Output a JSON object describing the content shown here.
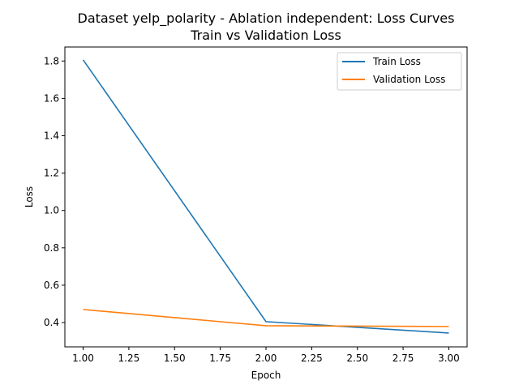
{
  "chart_data": {
    "type": "line",
    "title": "Dataset yelp_polarity - Ablation independent: Loss Curves",
    "subtitle": "Train vs Validation Loss",
    "xlabel": "Epoch",
    "ylabel": "Loss",
    "xlim": [
      0.9,
      3.1
    ],
    "ylim": [
      0.27,
      1.875
    ],
    "xticks": [
      1.0,
      1.25,
      1.5,
      1.75,
      2.0,
      2.25,
      2.5,
      2.75,
      3.0
    ],
    "xtick_labels": [
      "1.00",
      "1.25",
      "1.50",
      "1.75",
      "2.00",
      "2.25",
      "2.50",
      "2.75",
      "3.00"
    ],
    "yticks": [
      0.4,
      0.6,
      0.8,
      1.0,
      1.2,
      1.4,
      1.6,
      1.8
    ],
    "ytick_labels": [
      "0.4",
      "0.6",
      "0.8",
      "1.0",
      "1.2",
      "1.4",
      "1.6",
      "1.8"
    ],
    "grid": false,
    "legend_position": "top-right",
    "x": [
      1,
      2,
      3
    ],
    "series": [
      {
        "name": "Train Loss",
        "color": "#1f77b4",
        "values": [
          1.806,
          0.405,
          0.344
        ]
      },
      {
        "name": "Validation Loss",
        "color": "#ff7f0e",
        "values": [
          0.47,
          0.383,
          0.379
        ]
      }
    ]
  }
}
